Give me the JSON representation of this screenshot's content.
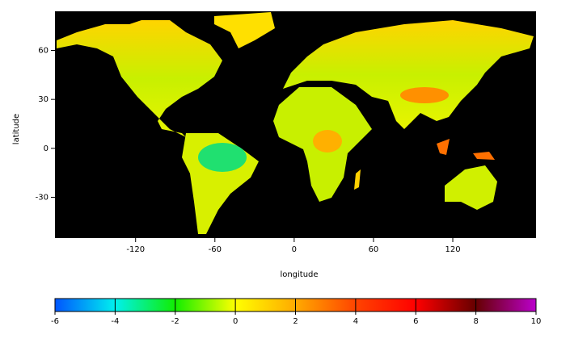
{
  "map": {
    "xlabel": "longitude",
    "ylabel": "latitude",
    "xlim": [
      -181,
      183
    ],
    "ylim": [
      -55,
      84
    ],
    "xticks": [
      -120,
      -60,
      0,
      60,
      120
    ],
    "yticks": [
      -30,
      0,
      30,
      60
    ]
  },
  "colorbar": {
    "lim": [
      -6,
      10
    ],
    "ticks": [
      -6,
      -4,
      -2,
      0,
      2,
      4,
      6,
      8,
      10
    ],
    "colors": [
      "#0055ff",
      "#00f0ee",
      "#11ee00",
      "#ffff00",
      "#ffaa00",
      "#ff4400",
      "#ff0000",
      "#660000",
      "#bb00cc"
    ]
  }
}
